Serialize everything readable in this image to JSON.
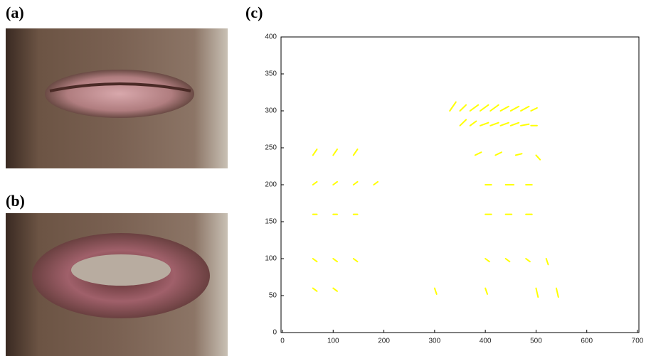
{
  "panels": {
    "a": "(a)",
    "b": "(b)",
    "c": "(c)"
  },
  "chart_data": {
    "type": "quiver",
    "xlim": [
      0,
      700
    ],
    "ylim": [
      0,
      400
    ],
    "xticks": [
      0,
      100,
      200,
      300,
      400,
      500,
      600,
      700
    ],
    "yticks": [
      0,
      50,
      100,
      150,
      200,
      250,
      300,
      350,
      400
    ],
    "series": [
      {
        "color": "#ffff00",
        "x": [
          330,
          350,
          370,
          390,
          410,
          430,
          450,
          470,
          490,
          350,
          370,
          390,
          410,
          430,
          450,
          470,
          490,
          60,
          100,
          140,
          380,
          420,
          460,
          500,
          60,
          100,
          140,
          180,
          400,
          440,
          480,
          60,
          100,
          140,
          400,
          440,
          480,
          60,
          100,
          140,
          400,
          440,
          480,
          520,
          60,
          100,
          300,
          400,
          500,
          540
        ],
        "y": [
          300,
          300,
          300,
          300,
          300,
          300,
          300,
          300,
          300,
          280,
          280,
          280,
          280,
          280,
          280,
          280,
          280,
          240,
          240,
          240,
          240,
          240,
          240,
          240,
          200,
          200,
          200,
          200,
          200,
          200,
          200,
          160,
          160,
          160,
          160,
          160,
          160,
          100,
          100,
          100,
          100,
          100,
          100,
          100,
          60,
          60,
          60,
          60,
          60,
          60
        ],
        "u": [
          6,
          6,
          8,
          8,
          8,
          8,
          8,
          8,
          6,
          6,
          6,
          8,
          8,
          8,
          8,
          8,
          6,
          4,
          4,
          4,
          6,
          6,
          6,
          4,
          4,
          4,
          4,
          4,
          6,
          8,
          6,
          4,
          4,
          4,
          6,
          6,
          6,
          4,
          4,
          4,
          4,
          4,
          4,
          2,
          4,
          4,
          2,
          2,
          2,
          2
        ],
        "v": [
          6,
          4,
          4,
          4,
          4,
          3,
          3,
          3,
          2,
          4,
          3,
          2,
          2,
          2,
          2,
          1,
          0,
          4,
          4,
          4,
          2,
          2,
          1,
          -3,
          2,
          2,
          2,
          2,
          0,
          0,
          0,
          0,
          0,
          0,
          0,
          0,
          0,
          -2,
          -2,
          -2,
          -2,
          -2,
          -2,
          -4,
          -2,
          -2,
          -4,
          -4,
          -6,
          -6
        ]
      }
    ]
  }
}
